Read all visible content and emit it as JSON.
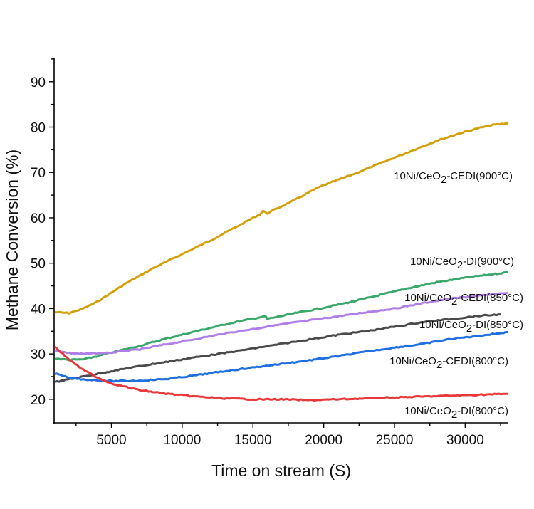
{
  "chart_data": {
    "type": "line",
    "title": "",
    "xlabel": "Time on stream (S)",
    "ylabel": "Methane Conversion (%)",
    "xlim": [
      950,
      33000
    ],
    "ylim": [
      14.8,
      95.3
    ],
    "xticks": [
      5000,
      10000,
      15000,
      20000,
      25000,
      30000
    ],
    "yticks": [
      20,
      30,
      40,
      50,
      60,
      70,
      80,
      90
    ],
    "grid": false,
    "legend": "inline labels at right end of each curve",
    "series": [
      {
        "name": "10Ni/CeO2-CEDI(900°C)",
        "color": "#d4a00a",
        "x": [
          1000,
          2000,
          3000,
          4000,
          5000,
          6000,
          8000,
          10000,
          12000,
          14000,
          15500,
          15700,
          16000,
          18000,
          19500,
          20000,
          22000,
          24000,
          26000,
          28000,
          30000,
          31000,
          32000,
          33000
        ],
        "y": [
          39.2,
          39.0,
          40.0,
          41.5,
          43.5,
          45.5,
          49.0,
          52.0,
          55.0,
          58.3,
          60.8,
          61.5,
          61.0,
          64.0,
          66.5,
          67.2,
          69.5,
          72.0,
          74.5,
          77.0,
          79.0,
          79.8,
          80.5,
          80.8
        ]
      },
      {
        "name": "10Ni/CeO2-DI(900°C)",
        "color": "#3aa86b",
        "x": [
          1000,
          2000,
          3000,
          4000,
          5000,
          7000,
          9000,
          11000,
          13000,
          15000,
          15900,
          16000,
          18000,
          20000,
          22000,
          24000,
          26000,
          28000,
          30000,
          33000
        ],
        "y": [
          29.0,
          28.7,
          28.8,
          29.5,
          30.3,
          31.8,
          33.5,
          35.0,
          36.5,
          37.8,
          38.3,
          37.7,
          39.0,
          40.2,
          41.5,
          43.0,
          44.5,
          45.8,
          46.8,
          48.0
        ]
      },
      {
        "name": "10Ni/CeO2-CEDI(850°C)",
        "color": "#b07ee6",
        "x": [
          1000,
          2000,
          3000,
          5000,
          7000,
          9000,
          11000,
          13000,
          15000,
          17000,
          19000,
          21000,
          23000,
          25000,
          27000,
          29000,
          31000,
          33000
        ],
        "y": [
          30.8,
          30.2,
          30.0,
          30.3,
          31.0,
          32.2,
          33.3,
          34.5,
          35.5,
          36.5,
          37.4,
          38.3,
          39.2,
          40.0,
          41.2,
          42.2,
          42.8,
          43.5
        ]
      },
      {
        "name": "10Ni/CeO2-DI(850°C)",
        "color": "#4a4a4a",
        "x": [
          1000,
          3000,
          5000,
          7000,
          9000,
          11000,
          13000,
          15000,
          17000,
          19000,
          21000,
          23000,
          25000,
          27000,
          29000,
          31000,
          32500
        ],
        "y": [
          23.8,
          25.0,
          26.2,
          27.3,
          28.3,
          29.3,
          30.2,
          31.2,
          32.2,
          33.2,
          34.2,
          35.0,
          36.0,
          37.0,
          37.7,
          38.4,
          38.7
        ]
      },
      {
        "name": "10Ni/CeO2-CEDI(800°C)",
        "color": "#1f6fe0",
        "x": [
          1000,
          2000,
          3000,
          5000,
          7000,
          9000,
          11000,
          13000,
          15000,
          17000,
          19000,
          21000,
          23000,
          25000,
          27000,
          29000,
          31000,
          33000
        ],
        "y": [
          25.7,
          24.7,
          24.4,
          24.0,
          24.1,
          24.5,
          25.3,
          26.2,
          27.0,
          27.8,
          28.6,
          29.5,
          30.5,
          31.4,
          32.2,
          33.3,
          34.0,
          34.8
        ]
      },
      {
        "name": "10Ni/CeO2-DI(800°C)",
        "color": "#e8383a",
        "x": [
          1000,
          2000,
          3000,
          4000,
          5000,
          7000,
          9000,
          11000,
          13000,
          15000,
          17000,
          19000,
          21000,
          23000,
          25000,
          27000,
          29000,
          31000,
          33000
        ],
        "y": [
          31.6,
          28.8,
          26.5,
          24.8,
          23.5,
          22.0,
          21.2,
          20.6,
          20.2,
          20.0,
          20.0,
          19.8,
          20.0,
          20.2,
          20.4,
          20.6,
          20.8,
          21.0,
          21.2
        ]
      }
    ]
  }
}
